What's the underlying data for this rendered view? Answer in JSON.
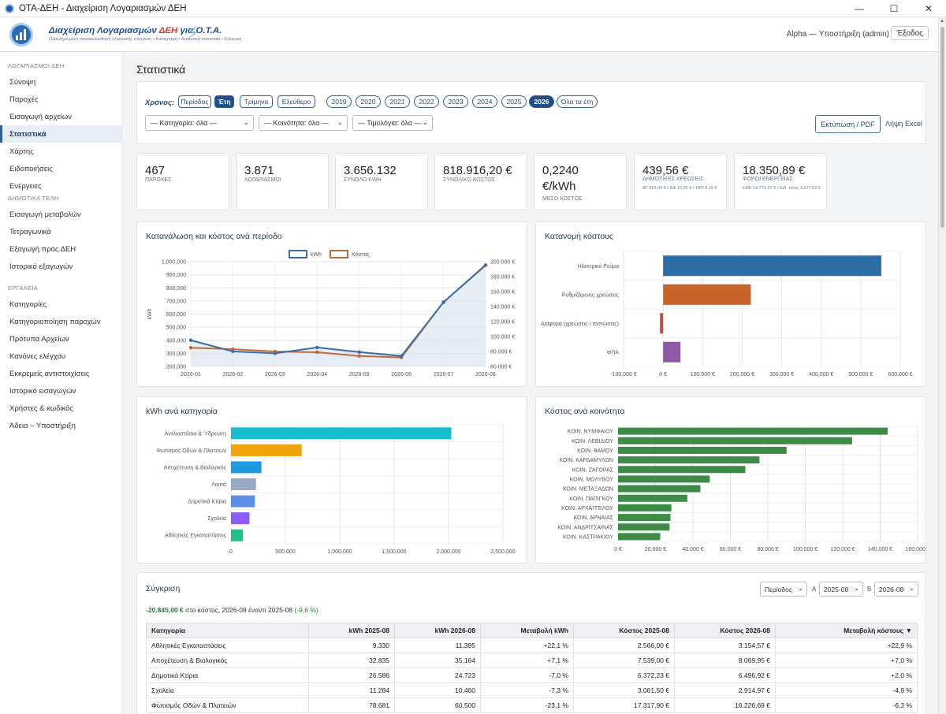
{
  "window": {
    "title": "ΟΤΑ-ΔΕΗ - Διαχείριση Λογαριασμών ΔΕΗ",
    "minimize": "—",
    "maximize": "☐",
    "close": "✕"
  },
  "header": {
    "logo_title_prefix": "Διαχείριση Λογαριασμών ",
    "logo_title_highlight": "ΔΕΗ",
    "logo_title_suffix": " για Ο.Τ.Α.",
    "logo_subtitle": "Ολοκληρωμένη παρακολούθηση ηλεκτρικής ενέργειας • Καταγραφή • Αναλυτικά στατιστικά • Εξαγωγή",
    "user": "Alpha — Υποστήριξη (admin)",
    "logout": "Έξοδος"
  },
  "sidebar": {
    "sections": [
      {
        "title": "ΛΟΓΑΡΙΑΣΜΟΙ ΔΕΗ",
        "items": [
          "Σύνοψη",
          "Παροχές",
          "Εισαγωγή αρχείων",
          "Στατιστικά",
          "Χάρτης",
          "Ειδοποιήσεις",
          "Ενέργειες"
        ]
      },
      {
        "title": "ΔΗΜΟΤΙΚΑ ΤΕΛΗ",
        "items": [
          "Εισαγωγή μεταβολών",
          "Τετραγωνικά",
          "Εξαγωγή προς ΔΕΗ",
          "Ιστορικό εξαγωγών"
        ]
      },
      {
        "title": "ΕΡΓΑΛΕΙΑ",
        "items": [
          "Κατηγορίες",
          "Κατηγοριοποίηση παροχών",
          "Πρότυπα Αρχείων",
          "Κανόνες ελέγχου",
          "Εκκρεμείς αντιστοιχίσεις",
          "Ιστορικό εισαγωγών",
          "Χρήστες & κωδικός",
          "Άδεια – Υποστήριξη"
        ]
      }
    ],
    "active": "Στατιστικά"
  },
  "page_title": "Στατιστικά",
  "filters": {
    "label": "Χρόνος:",
    "modes": [
      "Περίοδος",
      "Έτη",
      "Τρίμηνα",
      "Ελεύθερο"
    ],
    "active_mode": "Έτη",
    "years": [
      "2019",
      "2020",
      "2021",
      "2022",
      "2023",
      "2024",
      "2025",
      "2026",
      "Όλα τα έτη"
    ],
    "active_year": "2026",
    "category": "— Κατηγορία: όλα —",
    "community": "— Κοινότητα: όλα —",
    "invoices": "— Τιμολόγια: όλα —",
    "print": "Εκτύπωση / PDF",
    "excel": "Λήψη Excel"
  },
  "kpis": [
    {
      "value": "467",
      "label": "ΠΑΡΟΧΕΣ"
    },
    {
      "value": "3.871",
      "label": "ΛΟΓΑΡΙΑΣΜΟΙ"
    },
    {
      "value": "3.656.132",
      "label": "ΣΥΝΟΛΟ kWh"
    },
    {
      "value": "818.916,20 €",
      "label": "ΣΥΝΟΛΙΚΟ ΚΟΣΤΟΣ"
    },
    {
      "value": "0,2240 €/kWh",
      "label": "ΜΕΣΟ ΚΟΣΤΟΣ"
    },
    {
      "value": "439,56 €",
      "label": "ΔΗΜΟΤΙΚΕΣ ΧΡΕΩΣΕΙΣ",
      "sub": "ΑΓ 415,09 € • ΔΦ 16,32 € • ΤΑΠ 8,15 €"
    },
    {
      "value": "18.350,89 €",
      "label": "ΦΟΡΟΙ ΕΝΕΡΓΕΙΑΣ",
      "sub": "ΕΦΚ 14.773,37 € • Ειδ. τέλος 3.577,52 €"
    }
  ],
  "charts": {
    "line_title": "Κατανάλωση και κόστος ανά περίοδο",
    "dist_title": "Κατανομή κόστους",
    "kwh_cat_title": "kWh ανά κατηγορία",
    "comm_title": "Κόστος ανά κοινότητα"
  },
  "chart_data": [
    {
      "type": "line",
      "title": "Κατανάλωση και κόστος ανά περίοδο",
      "x": [
        "2026-01",
        "2026-02",
        "2026-03",
        "2026-04",
        "2026-05",
        "2026-06",
        "2026-07",
        "2026-08"
      ],
      "series": [
        {
          "name": "kWh",
          "axis": "left",
          "color": "#3b6ea5",
          "values": [
            400000,
            315000,
            300000,
            345000,
            310000,
            280000,
            690000,
            975000
          ]
        },
        {
          "name": "Κόστος",
          "axis": "right",
          "color": "#c06a3c",
          "values": [
            85000,
            83000,
            80000,
            79000,
            74000,
            72000,
            146000,
            195000
          ]
        }
      ],
      "left_ticks": [
        "1,000,000",
        "900,000",
        "800,000",
        "700,000",
        "600,000",
        "500,000",
        "400,000",
        "300,000",
        "200,000"
      ],
      "right_ticks": [
        "200.000 €",
        "180.000 €",
        "160.000 €",
        "140.000 €",
        "120.000 €",
        "100.000 €",
        "80.000 €",
        "60.000 €"
      ],
      "ylabel": "kWh",
      "ylim": [
        200000,
        1000000
      ],
      "y2lim": [
        60000,
        200000
      ],
      "legend": "top"
    },
    {
      "type": "bar",
      "orientation": "horizontal",
      "title": "Κατανομή κόστους",
      "categories": [
        "Ηλεκτρικό Ρεύμα",
        "Ρυθμιζόμενες χρεώσεις",
        "Διάφορα (χρεώσεις / πιστώσεις)",
        "ΦΠΑ"
      ],
      "values": [
        552000,
        222000,
        -8000,
        44000
      ],
      "colors": [
        "#2e6ea6",
        "#c8632a",
        "#c0504d",
        "#8e5aa8"
      ],
      "xlim": [
        -100000,
        600000
      ],
      "ticks": [
        "-100.000 €",
        "0 €",
        "100.000 €",
        "200.000 €",
        "300.000 €",
        "400.000 €",
        "500.000 €",
        "600.000 €"
      ]
    },
    {
      "type": "bar",
      "orientation": "horizontal",
      "title": "kWh ανά κατηγορία",
      "categories": [
        "Αντλιοστάσια & Ύδρευση",
        "Φωτισμός Οδών & Πλατειών",
        "Αποχέτευση & Βιολογικός",
        "Λοιπά",
        "Δημοτικά Κτίρια",
        "Σχολεία",
        "Αθλητικές Εγκαταστάσεις"
      ],
      "values": [
        2025000,
        650000,
        280000,
        230000,
        220000,
        170000,
        110000
      ],
      "colors": [
        "#17becf",
        "#f0a30a",
        "#1e9be0",
        "#9aa9c4",
        "#5b8ee6",
        "#8b5cf6",
        "#20c08a"
      ],
      "xlim": [
        0,
        2500000
      ],
      "ticks": [
        "0",
        "500,000",
        "1,000,000",
        "1,500,000",
        "2,000,000",
        "2,500,000"
      ]
    },
    {
      "type": "bar",
      "orientation": "horizontal",
      "title": "Κόστος ανά κοινότητα",
      "categories": [
        "ΚΟΙΝ. ΝΥΜΦΑΙΟΥ",
        "ΚΟΙΝ. ΛΕΒΙΔΙΟΥ",
        "ΚΟΙΝ. ΒΑΜΟΥ",
        "ΚΟΙΝ. ΚΑΡΔΑΜΥΛΩΝ",
        "ΚΟΙΝ. ΖΑΓΟΡΑΣ",
        "ΚΟΙΝ. ΜΟΛΥΒΟΥ",
        "ΚΟΙΝ. ΜΕΤΑΞΑΔΩΝ",
        "ΚΟΙΝ. ΠΑΠΙΓΚΟΥ",
        "ΚΟΙΝ. ΑΡΧΑΓΓΕΛΟΥ",
        "ΚΟΙΝ. ΑΡΝΑΙΑΣ",
        "ΚΟΙΝ. ΑΝΔΡΙΤΣΑΙΝΑΣ",
        "ΚΟΙΝ. ΚΑΣΤΡΑΚΙΟΥ"
      ],
      "values": [
        144000,
        125000,
        90000,
        75500,
        68000,
        49000,
        44000,
        37000,
        28500,
        28000,
        27500,
        22500
      ],
      "colors": [
        "#3f8a46"
      ],
      "xlim": [
        0,
        160000
      ],
      "ticks": [
        "0 €",
        "20.000 €",
        "40.000 €",
        "60.000 €",
        "80.000 €",
        "100.000 €",
        "120.000 €",
        "140.000 €",
        "160.000 €"
      ]
    }
  ],
  "comparison": {
    "title": "Σύγκριση",
    "mode": "Περίοδος",
    "a_label": "Α",
    "a_value": "2025-08",
    "b_label": "Β",
    "b_value": "2026-08",
    "summary_value": "-20.845,00 €",
    "summary_text": " στο κόστος, 2026-08 έναντι 2025-08 ",
    "summary_pct": "(-9,6 %)",
    "columns": [
      "Κατηγορία",
      "kWh 2025-08",
      "kWh 2026-08",
      "Μεταβολή kWh",
      "Κόστος 2025-08",
      "Κόστος 2026-08",
      "Μεταβολή κόστους ▼"
    ],
    "rows": [
      {
        "cat": "Αθλητικές Εγκαταστάσεις",
        "k1": "9.330",
        "k2": "11.395",
        "dk": "+22,1 %",
        "dk_dir": "up",
        "c1": "2.566,00 €",
        "c2": "3.154,57 €",
        "dc": "+22,9 %",
        "dc_dir": "up"
      },
      {
        "cat": "Αποχέτευση & Βιολογικός",
        "k1": "32.835",
        "k2": "35.164",
        "dk": "+7,1 %",
        "dk_dir": "up",
        "c1": "7.539,00 €",
        "c2": "8.069,95 €",
        "dc": "+7,0 %",
        "dc_dir": "up"
      },
      {
        "cat": "Δημοτικά Κτίρια",
        "k1": "26.586",
        "k2": "24.723",
        "dk": "-7,0 %",
        "dk_dir": "down",
        "c1": "6.372,23 €",
        "c2": "6.496,92 €",
        "dc": "+2,0 %",
        "dc_dir": "none"
      },
      {
        "cat": "Σχολεία",
        "k1": "11.284",
        "k2": "10.460",
        "dk": "-7,3 %",
        "dk_dir": "down",
        "c1": "3.061,50 €",
        "c2": "2.914,97 €",
        "dc": "-4,8 %",
        "dc_dir": "down"
      },
      {
        "cat": "Φωτισμός Οδών & Πλατειών",
        "k1": "78.681",
        "k2": "60.500",
        "dk": "-23,1 %",
        "dk_dir": "down",
        "c1": "17.317,90 €",
        "c2": "16.226,69 €",
        "dc": "-6,3 %",
        "dc_dir": "down"
      }
    ]
  }
}
